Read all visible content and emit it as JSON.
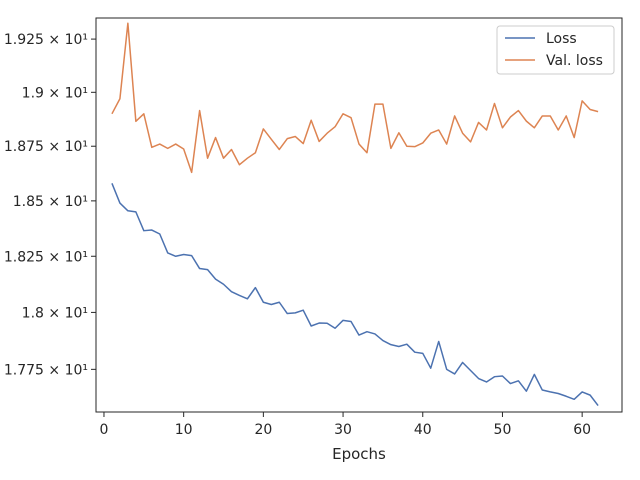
{
  "chart_data": {
    "type": "line",
    "xlabel": "Epochs",
    "ylabel": "",
    "xlim": [
      -1,
      65
    ],
    "ylim": [
      17.565,
      19.35
    ],
    "xticks": [
      0,
      10,
      20,
      30,
      40,
      50,
      60
    ],
    "xtick_labels": [
      "0",
      "10",
      "20",
      "30",
      "40",
      "50",
      "60"
    ],
    "yticks": [
      17.75,
      18.0,
      18.25,
      18.5,
      18.75,
      19.0,
      19.25
    ],
    "ytick_labels": [
      "1.775 × 10¹",
      "1.8 × 10¹",
      "1.825 × 10¹",
      "1.85 × 10¹",
      "1.875 × 10¹",
      "1.9 × 10¹",
      "1.925 × 10¹"
    ],
    "grid": false,
    "log_scale_y": true,
    "legend_position": "top-right",
    "x": [
      1,
      2,
      3,
      4,
      5,
      6,
      7,
      8,
      9,
      10,
      11,
      12,
      13,
      14,
      15,
      16,
      17,
      18,
      19,
      20,
      21,
      22,
      23,
      24,
      25,
      26,
      27,
      28,
      29,
      30,
      31,
      32,
      33,
      34,
      35,
      36,
      37,
      38,
      39,
      40,
      41,
      42,
      43,
      44,
      45,
      46,
      47,
      48,
      49,
      50,
      51,
      52,
      53,
      54,
      55,
      56,
      57,
      58,
      59,
      60,
      61,
      62
    ],
    "series": [
      {
        "name": "Loss",
        "color": "#4c72b0",
        "values": [
          18.58,
          18.49,
          18.455,
          18.45,
          18.365,
          18.368,
          18.35,
          18.265,
          18.25,
          18.258,
          18.253,
          18.195,
          18.19,
          18.148,
          18.125,
          18.092,
          18.075,
          18.06,
          18.11,
          18.045,
          18.035,
          18.045,
          17.995,
          17.998,
          18.01,
          17.94,
          17.953,
          17.952,
          17.93,
          17.965,
          17.96,
          17.9,
          17.915,
          17.905,
          17.876,
          17.858,
          17.85,
          17.86,
          17.825,
          17.82,
          17.755,
          17.872,
          17.75,
          17.73,
          17.78,
          17.745,
          17.71,
          17.695,
          17.718,
          17.721,
          17.688,
          17.7,
          17.655,
          17.728,
          17.66,
          17.652,
          17.645,
          17.633,
          17.62,
          17.652,
          17.638,
          17.593
        ]
      },
      {
        "name": "Val. loss",
        "color": "#dd8452",
        "values": [
          18.9,
          18.97,
          19.325,
          18.865,
          18.9,
          18.745,
          18.76,
          18.74,
          18.76,
          18.737,
          18.63,
          18.915,
          18.695,
          18.79,
          18.695,
          18.735,
          18.665,
          18.695,
          18.72,
          18.83,
          18.782,
          18.735,
          18.785,
          18.795,
          18.762,
          18.87,
          18.772,
          18.81,
          18.84,
          18.9,
          18.882,
          18.76,
          18.72,
          18.945,
          18.945,
          18.74,
          18.812,
          18.75,
          18.748,
          18.765,
          18.81,
          18.825,
          18.76,
          18.89,
          18.81,
          18.77,
          18.86,
          18.825,
          18.948,
          18.835,
          18.885,
          18.915,
          18.866,
          18.835,
          18.89,
          18.89,
          18.825,
          18.89,
          18.79,
          18.96,
          18.92,
          18.91
        ]
      }
    ]
  }
}
